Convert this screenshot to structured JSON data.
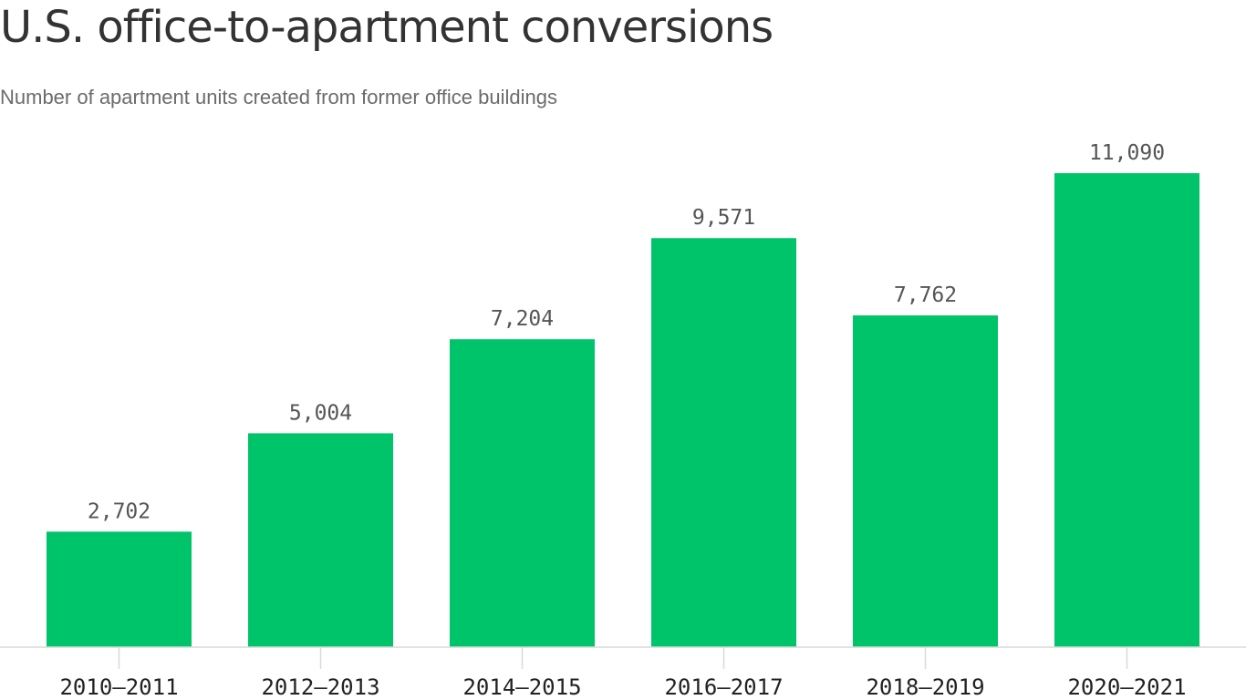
{
  "chart_data": {
    "type": "bar",
    "title": "U.S. office-to-apartment conversions",
    "subtitle": "Number of apartment units created from former office buildings",
    "xlabel": "",
    "ylabel": "",
    "categories": [
      "2010–2011",
      "2012–2013",
      "2014–2015",
      "2016–2017",
      "2018–2019",
      "2020–2021"
    ],
    "values": [
      2702,
      5004,
      7204,
      9571,
      7762,
      11090
    ],
    "value_labels": [
      "2,702",
      "5,004",
      "7,204",
      "9,571",
      "7,762",
      "11,090"
    ],
    "ylim": [
      0,
      11090
    ],
    "grid": false,
    "legend": "none",
    "bar_color": "#00c46a",
    "axis_color": "#d9d9d9"
  }
}
